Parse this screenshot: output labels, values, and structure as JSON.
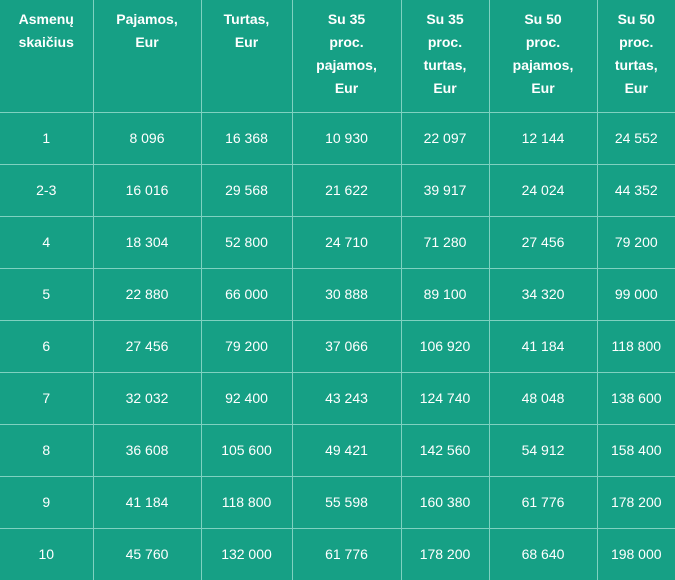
{
  "table": {
    "headers": [
      "Asmenų\nskaičius",
      "Pajamos,\nEur",
      "Turtas,\nEur",
      "Su 35\nproc.\npajamos,\nEur",
      "Su 35\nproc.\nturtas,\nEur",
      "Su 50\nproc.\npajamos,\nEur",
      "Su 50\nproc.\nturtas,\nEur"
    ],
    "rows": [
      [
        "1",
        "8 096",
        "16 368",
        "10 930",
        "22 097",
        "12 144",
        "24 552"
      ],
      [
        "2-3",
        "16 016",
        "29 568",
        "21 622",
        "39 917",
        "24 024",
        "44 352"
      ],
      [
        "4",
        "18 304",
        "52 800",
        "24 710",
        "71 280",
        "27 456",
        "79 200"
      ],
      [
        "5",
        "22 880",
        "66 000",
        "30 888",
        "89 100",
        "34 320",
        "99 000"
      ],
      [
        "6",
        "27 456",
        "79 200",
        "37 066",
        "106 920",
        "41 184",
        "118 800"
      ],
      [
        "7",
        "32 032",
        "92 400",
        "43 243",
        "124 740",
        "48 048",
        "138 600"
      ],
      [
        "8",
        "36 608",
        "105 600",
        "49 421",
        "142 560",
        "54 912",
        "158 400"
      ],
      [
        "9",
        "41 184",
        "118 800",
        "55 598",
        "160 380",
        "61 776",
        "178 200"
      ],
      [
        "10",
        "45 760",
        "132 000",
        "61 776",
        "178 200",
        "68 640",
        "198 000"
      ]
    ]
  },
  "colors": {
    "background": "#16a085",
    "grid_lines": "#7fd1c0",
    "text": "#ffffff"
  }
}
